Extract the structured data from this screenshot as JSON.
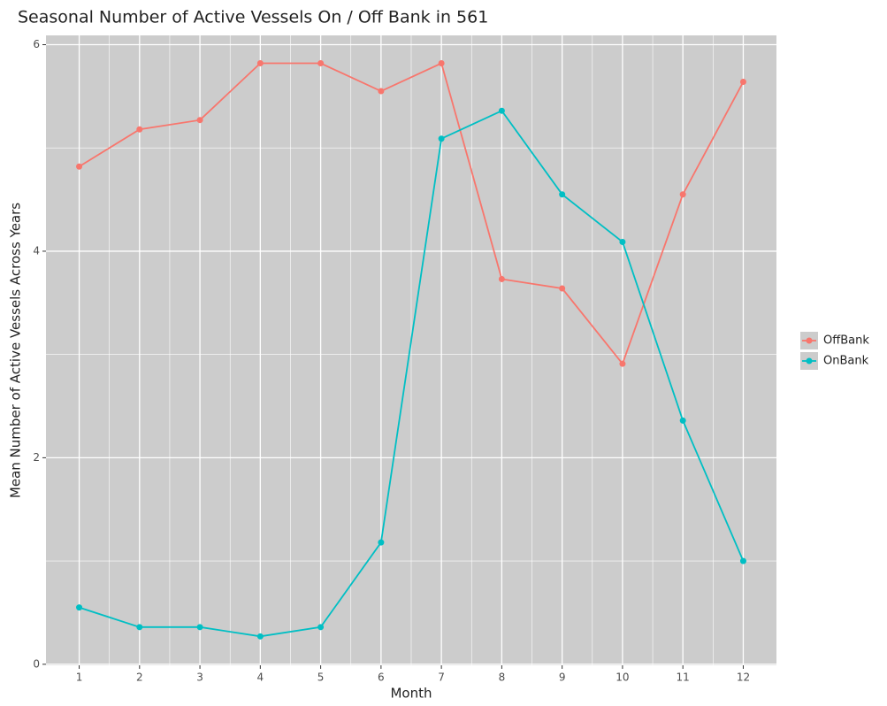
{
  "chart_data": {
    "type": "line",
    "title": "Seasonal Number of Active Vessels On / Off Bank in 561",
    "x_label": "Month",
    "y_label": "Mean Number of Active Vessels Across Years",
    "x": [
      1,
      2,
      3,
      4,
      5,
      6,
      7,
      8,
      9,
      10,
      11,
      12
    ],
    "series": [
      {
        "name": "OffBank",
        "color": "#F8766D",
        "values": [
          4.82,
          5.18,
          5.27,
          5.82,
          5.82,
          5.55,
          5.82,
          3.73,
          3.64,
          2.91,
          4.55,
          5.64
        ]
      },
      {
        "name": "OnBank",
        "color": "#00BFC4",
        "values": [
          0.55,
          0.36,
          0.36,
          0.27,
          0.36,
          1.18,
          5.09,
          5.36,
          4.55,
          4.09,
          2.36,
          1.0
        ]
      }
    ],
    "xlim": [
      0.45,
      12.55
    ],
    "xticks": [
      1,
      2,
      3,
      4,
      5,
      6,
      7,
      8,
      9,
      10,
      11,
      12
    ],
    "ylim": [
      -0.01,
      6.09
    ],
    "yticks": [
      0,
      2,
      4,
      6
    ],
    "grid": true,
    "legend": "right"
  }
}
